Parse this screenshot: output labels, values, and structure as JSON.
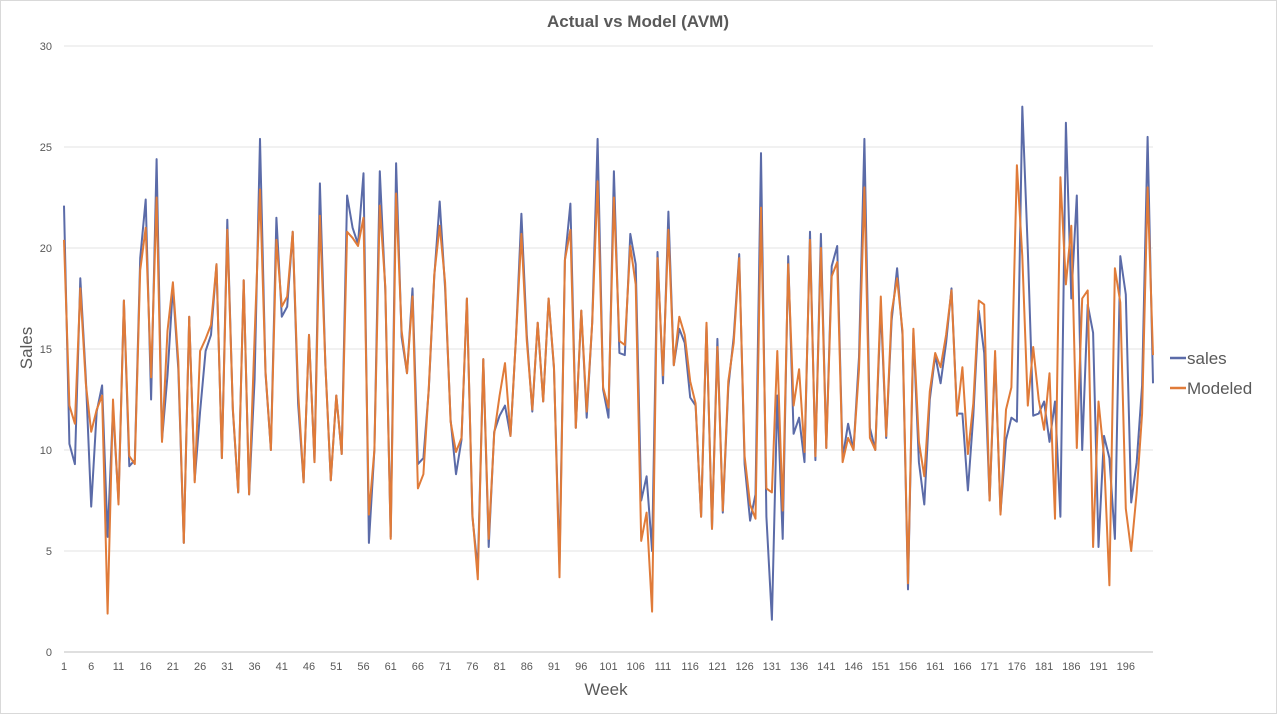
{
  "chart_data": {
    "type": "line",
    "title": "Actual vs Model (AVM)",
    "xlabel": "Week",
    "ylabel": "Sales",
    "ylim": [
      0,
      30
    ],
    "yticks": [
      0,
      5,
      10,
      15,
      20,
      25,
      30
    ],
    "xlim": [
      1,
      200
    ],
    "xticks": [
      1,
      6,
      11,
      16,
      21,
      26,
      31,
      36,
      41,
      46,
      51,
      56,
      61,
      66,
      71,
      76,
      81,
      86,
      91,
      96,
      101,
      106,
      111,
      116,
      121,
      126,
      131,
      136,
      141,
      146,
      151,
      156,
      161,
      166,
      171,
      176,
      181,
      186,
      191,
      196
    ],
    "grid": true,
    "legend_position": "right",
    "series": [
      {
        "name": "sales",
        "color": "#5B6BA8",
        "values": [
          22.1,
          10.3,
          9.3,
          18.5,
          13.6,
          7.2,
          11.9,
          13.2,
          5.7,
          12.0,
          7.5,
          17.4,
          9.2,
          9.5,
          19.5,
          22.4,
          12.5,
          24.4,
          10.5,
          13.7,
          18.1,
          14.0,
          5.4,
          16.6,
          8.5,
          11.9,
          14.9,
          15.7,
          19.2,
          9.6,
          21.4,
          12.0,
          7.9,
          18.4,
          7.8,
          13.5,
          25.4,
          13.8,
          10.0,
          21.5,
          16.6,
          17.1,
          20.8,
          12.3,
          8.4,
          15.7,
          9.4,
          23.2,
          14.2,
          8.5,
          12.7,
          9.8,
          22.6,
          21.0,
          20.2,
          23.7,
          5.4,
          10.0,
          23.8,
          17.9,
          5.7,
          24.2,
          15.6,
          13.8,
          18.0,
          9.3,
          9.6,
          13.0,
          18.6,
          22.3,
          18.0,
          11.5,
          8.8,
          10.5,
          17.5,
          6.7,
          4.1,
          14.5,
          5.2,
          10.9,
          11.7,
          12.2,
          10.7,
          15.5,
          21.7,
          15.7,
          11.9,
          16.3,
          12.4,
          17.5,
          14.0,
          4.3,
          19.4,
          22.2,
          11.1,
          16.9,
          11.6,
          16.3,
          25.4,
          13.0,
          11.6,
          23.8,
          14.8,
          14.7,
          20.7,
          19.2,
          7.5,
          8.7,
          5.0,
          19.8,
          13.3,
          21.8,
          14.2,
          16.0,
          15.3,
          12.6,
          12.2,
          6.7,
          16.2,
          6.1,
          15.5,
          6.9,
          13.1,
          15.6,
          19.7,
          9.3,
          6.5,
          7.8,
          24.7,
          6.7,
          1.6,
          12.7,
          5.6,
          19.6,
          10.8,
          11.6,
          9.4,
          20.8,
          9.5,
          20.7,
          10.1,
          19.1,
          20.1,
          9.6,
          11.3,
          10.0,
          14.6,
          25.4,
          11.1,
          10.0,
          17.1,
          10.6,
          16.4,
          19.0,
          15.7,
          3.1,
          15.8,
          9.4,
          7.3,
          12.5,
          14.7,
          13.3,
          15.3,
          18.0,
          11.8,
          11.8,
          8.0,
          11.7,
          16.9,
          14.8,
          7.5,
          14.6,
          6.9,
          10.5,
          11.6,
          11.4,
          27.0,
          19.9,
          11.7,
          11.8,
          12.4,
          10.4,
          12.4,
          6.7,
          26.2,
          17.5,
          22.6,
          10.0,
          17.2,
          15.8,
          5.2,
          10.7,
          9.6,
          5.6,
          19.6,
          17.7,
          7.4,
          9.4,
          13.2,
          25.5,
          13.3
        ]
      },
      {
        "name": "Modeled",
        "color": "#E07B39",
        "values": [
          20.4,
          12.2,
          11.3,
          18.0,
          13.3,
          10.9,
          12.0,
          12.7,
          1.9,
          12.5,
          7.3,
          17.4,
          9.7,
          9.3,
          18.9,
          21.0,
          13.6,
          22.5,
          10.4,
          15.9,
          18.3,
          14.4,
          5.4,
          16.6,
          8.4,
          14.9,
          15.5,
          16.2,
          19.2,
          9.6,
          20.9,
          12.1,
          7.9,
          18.4,
          7.8,
          15.6,
          22.9,
          13.9,
          10.0,
          20.4,
          17.1,
          17.6,
          20.8,
          12.9,
          8.4,
          15.7,
          9.4,
          21.6,
          14.2,
          8.5,
          12.7,
          9.8,
          20.8,
          20.5,
          20.1,
          21.5,
          6.8,
          10.0,
          22.1,
          18.1,
          5.6,
          22.7,
          15.9,
          13.8,
          17.6,
          8.1,
          8.8,
          13.1,
          18.7,
          21.1,
          18.3,
          11.4,
          9.9,
          10.6,
          17.5,
          6.8,
          3.6,
          14.5,
          5.6,
          10.8,
          12.7,
          14.3,
          10.7,
          15.5,
          20.7,
          15.4,
          12.0,
          16.3,
          12.4,
          17.5,
          14.1,
          3.7,
          19.4,
          20.9,
          11.1,
          16.9,
          11.9,
          16.3,
          23.3,
          13.1,
          12.1,
          22.5,
          15.4,
          15.2,
          20.1,
          18.2,
          5.5,
          6.9,
          2.0,
          19.5,
          13.7,
          20.9,
          14.2,
          16.6,
          15.7,
          13.4,
          12.3,
          6.7,
          16.3,
          6.1,
          15.1,
          7.0,
          13.4,
          15.3,
          19.5,
          9.7,
          7.3,
          6.6,
          22.0,
          8.1,
          7.9,
          14.9,
          7.0,
          19.2,
          12.2,
          14.0,
          9.9,
          20.4,
          9.7,
          20.0,
          10.1,
          18.6,
          19.3,
          9.4,
          10.6,
          10.0,
          14.0,
          23.0,
          10.6,
          10.0,
          17.6,
          10.7,
          16.8,
          18.5,
          15.9,
          3.4,
          16.0,
          10.4,
          8.7,
          12.9,
          14.8,
          14.1,
          15.7,
          17.9,
          11.7,
          14.1,
          9.8,
          12.3,
          17.4,
          17.2,
          7.5,
          14.9,
          6.8,
          12.0,
          13.1,
          24.1,
          19.6,
          12.2,
          15.1,
          12.5,
          11.0,
          13.8,
          6.6,
          23.5,
          18.2,
          21.1,
          10.1,
          17.5,
          17.9,
          5.2,
          12.4,
          9.7,
          3.3,
          19.0,
          17.3,
          7.1,
          5.0,
          7.9,
          11.8,
          23.0,
          14.7
        ]
      }
    ]
  }
}
